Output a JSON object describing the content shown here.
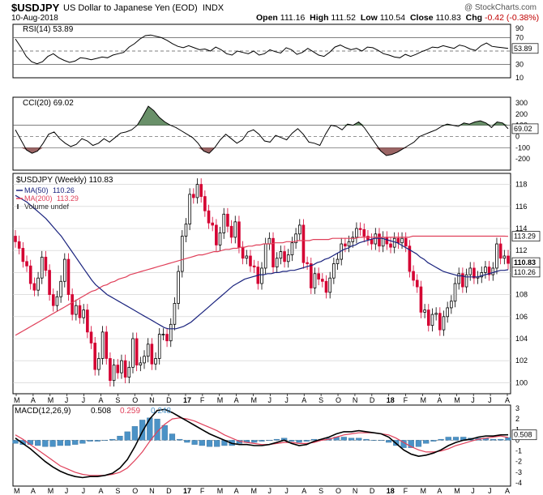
{
  "header": {
    "symbol": "$USDJPY",
    "description": "US Dollar to Japanese Yen (EOD)",
    "exchange": "INDX",
    "date": "10-Aug-2018",
    "copyright": "@ StockCharts.com",
    "open_label": "Open",
    "open": "111.16",
    "high_label": "High",
    "high": "111.52",
    "low_label": "Low",
    "low": "110.54",
    "close_label": "Close",
    "close": "110.83",
    "chg_label": "Chg",
    "chg": "-0.42 (-0.38%)",
    "chg_icon": "down-triangle-icon"
  },
  "colors": {
    "up": "#000000",
    "down": "#d40032",
    "ma50": "#1a237e",
    "ma200": "#e0405a",
    "macd_hist": "#4b92c6",
    "cci_pos": "#4f7c4f",
    "cci_neg": "#8a4a4a",
    "grid": "#cccccc"
  },
  "chart_data": [
    {
      "type": "line",
      "title": "RSI(14) 53.89",
      "label": "RSI(14)",
      "value": "53.89",
      "yticks": [
        "90",
        "70",
        "50",
        "30",
        "10"
      ],
      "ylim": [
        10,
        90
      ],
      "reference_lines": [
        30,
        50,
        70
      ],
      "values": [
        68,
        56,
        42,
        34,
        31,
        34,
        42,
        46,
        40,
        36,
        33,
        35,
        40,
        39,
        37,
        39,
        41,
        40,
        44,
        46,
        48,
        56,
        61,
        68,
        73,
        74,
        72,
        70,
        66,
        61,
        57,
        55,
        58,
        55,
        52,
        53,
        50,
        56,
        52,
        46,
        44,
        50,
        48,
        46,
        50,
        44,
        46,
        52,
        49,
        47,
        55,
        52,
        45,
        48,
        54,
        49,
        44,
        42,
        48,
        56,
        59,
        55,
        52,
        54,
        50,
        56,
        55,
        51,
        46,
        44,
        41,
        40,
        45,
        42,
        45,
        49,
        52,
        56,
        55,
        58,
        56,
        54,
        59,
        57,
        53,
        51,
        58,
        62,
        57,
        56,
        55,
        53.89
      ]
    },
    {
      "type": "area",
      "title": "CCI(20) 69.02",
      "label": "CCI(20)",
      "value": "69.02",
      "yticks": [
        "300",
        "200",
        "100",
        "0",
        "-100",
        "-200"
      ],
      "ylim": [
        -300,
        350
      ],
      "reference_lines": [
        -100,
        0,
        100
      ],
      "values": [
        60,
        -30,
        -120,
        -150,
        -130,
        -60,
        20,
        40,
        -20,
        -60,
        -90,
        -70,
        -20,
        -40,
        -80,
        -60,
        -20,
        -50,
        -10,
        30,
        40,
        60,
        100,
        180,
        270,
        230,
        170,
        130,
        100,
        80,
        50,
        20,
        -10,
        -60,
        -130,
        -150,
        -100,
        -30,
        20,
        -20,
        -60,
        -30,
        40,
        60,
        20,
        -40,
        -50,
        10,
        -10,
        -30,
        30,
        70,
        20,
        -50,
        -60,
        -80,
        20,
        100,
        90,
        60,
        110,
        100,
        130,
        80,
        10,
        -60,
        -130,
        -170,
        -160,
        -140,
        -110,
        -80,
        -50,
        0,
        20,
        40,
        60,
        90,
        110,
        100,
        90,
        120,
        110,
        130,
        140,
        120,
        80,
        130,
        120,
        69.02
      ]
    },
    {
      "type": "candlestick",
      "title": "$USDJPY (Weekly) 110.83",
      "legend": [
        {
          "name": "$USDJPY (Weekly)",
          "value": "110.83"
        },
        {
          "name": "MA(50)",
          "value": "110.26"
        },
        {
          "name": "MA(200)",
          "value": "113.29"
        },
        {
          "name": "Volume undef",
          "value": ""
        }
      ],
      "yticks": [
        "118",
        "116",
        "114",
        "112",
        "110",
        "108",
        "106",
        "104",
        "102",
        "100"
      ],
      "ylim": [
        99,
        119
      ],
      "xlabels": [
        "M",
        "A",
        "M",
        "J",
        "J",
        "A",
        "S",
        "O",
        "N",
        "D",
        "17",
        "F",
        "M",
        "A",
        "M",
        "J",
        "J",
        "A",
        "S",
        "O",
        "N",
        "D",
        "18",
        "F",
        "M",
        "A",
        "M",
        "J",
        "J",
        "A"
      ],
      "price_labels": [
        "113.29",
        "110.83",
        "110.26"
      ],
      "closes": [
        112.8,
        112.2,
        111.0,
        110.6,
        109.0,
        108.4,
        109.5,
        111.4,
        110.2,
        108.0,
        107.0,
        107.8,
        109.2,
        111.2,
        108.0,
        106.2,
        107.0,
        105.9,
        106.6,
        104.6,
        103.6,
        101.2,
        102.2,
        104.6,
        102.2,
        100.2,
        101.6,
        100.9,
        102.0,
        100.5,
        101.4,
        104.0,
        101.6,
        101.8,
        102.4,
        103.5,
        101.7,
        102.2,
        104.4,
        104.4,
        103.8,
        105.3,
        107.2,
        110.1,
        113.3,
        114.4,
        117.1,
        116.8,
        118.0,
        116.9,
        115.6,
        114.5,
        114.3,
        112.5,
        113.6,
        115.3,
        114.2,
        113.2,
        114.6,
        112.3,
        111.3,
        111.5,
        110.6,
        110.5,
        109.0,
        110.4,
        112.6,
        113.1,
        110.5,
        111.3,
        111.9,
        111.0,
        111.6,
        112.7,
        113.5,
        114.3,
        110.9,
        110.8,
        108.6,
        109.9,
        109.4,
        109.2,
        108.2,
        109.5,
        110.8,
        111.2,
        112.6,
        112.4,
        112.8,
        113.2,
        114.0,
        113.9,
        113.3,
        113.0,
        112.6,
        113.5,
        112.4,
        113.2,
        112.6,
        112.3,
        113.1,
        112.7,
        113.1,
        112.4,
        110.1,
        109.3,
        108.7,
        106.4,
        106.6,
        105.2,
        106.2,
        106.3,
        104.8,
        106.0,
        106.8,
        107.4,
        109.0,
        109.9,
        108.7,
        109.8,
        110.4,
        109.5,
        109.6,
        110.0,
        110.5,
        109.8,
        110.4,
        112.6,
        111.3,
        111.5,
        110.83
      ],
      "ma50": [
        117.0,
        116.8,
        116.6,
        116.4,
        116.1,
        115.8,
        115.5,
        115.2,
        114.9,
        114.5,
        114.1,
        113.7,
        113.3,
        112.8,
        112.3,
        111.8,
        111.3,
        110.8,
        110.3,
        109.8,
        109.3,
        108.9,
        108.6,
        108.3,
        108.0,
        107.8,
        107.6,
        107.4,
        107.2,
        107.0,
        106.8,
        106.6,
        106.4,
        106.2,
        106.0,
        105.8,
        105.6,
        105.4,
        105.2,
        105.0,
        104.9,
        104.9,
        104.9,
        105.0,
        105.1,
        105.3,
        105.5,
        105.8,
        106.1,
        106.4,
        106.7,
        107.0,
        107.3,
        107.6,
        107.9,
        108.2,
        108.5,
        108.8,
        109.0,
        109.2,
        109.4,
        109.5,
        109.6,
        109.7,
        109.8,
        109.8,
        109.9,
        109.9,
        110.0,
        110.0,
        110.1,
        110.1,
        110.2,
        110.2,
        110.3,
        110.4,
        110.5,
        110.6,
        110.7,
        110.9,
        111.0,
        111.2,
        111.3,
        111.5,
        111.7,
        111.9,
        112.1,
        112.2,
        112.4,
        112.5,
        112.7,
        112.8,
        112.9,
        113.0,
        113.1,
        113.1,
        113.1,
        113.0,
        112.9,
        112.8,
        112.7,
        112.5,
        112.3,
        112.1,
        111.9,
        111.7,
        111.4,
        111.2,
        110.9,
        110.7,
        110.5,
        110.3,
        110.1,
        110.0,
        109.9,
        109.8,
        109.7,
        109.7,
        109.6,
        109.6,
        109.6,
        109.6,
        109.7,
        109.8,
        109.9,
        110.0,
        110.1,
        110.2,
        110.2,
        110.26
      ],
      "ma200": [
        104.3,
        104.5,
        104.7,
        104.9,
        105.1,
        105.3,
        105.5,
        105.7,
        105.9,
        106.1,
        106.3,
        106.5,
        106.7,
        106.9,
        107.1,
        107.3,
        107.5,
        107.7,
        107.9,
        108.1,
        108.3,
        108.4,
        108.6,
        108.8,
        108.9,
        109.1,
        109.2,
        109.4,
        109.5,
        109.6,
        109.8,
        109.9,
        110.0,
        110.1,
        110.2,
        110.3,
        110.4,
        110.5,
        110.6,
        110.7,
        110.8,
        110.9,
        111.0,
        111.1,
        111.2,
        111.3,
        111.4,
        111.5,
        111.6,
        111.6,
        111.7,
        111.8,
        111.9,
        111.9,
        112.0,
        112.1,
        112.1,
        112.2,
        112.2,
        112.3,
        112.3,
        112.4,
        112.4,
        112.5,
        112.5,
        112.6,
        112.6,
        112.6,
        112.7,
        112.7,
        112.7,
        112.8,
        112.8,
        112.8,
        112.9,
        112.9,
        112.9,
        112.9,
        113.0,
        113.0,
        113.0,
        113.0,
        113.0,
        113.1,
        113.1,
        113.1,
        113.1,
        113.1,
        113.1,
        113.1,
        113.2,
        113.2,
        113.2,
        113.2,
        113.2,
        113.2,
        113.2,
        113.2,
        113.2,
        113.2,
        113.2,
        113.2,
        113.2,
        113.2,
        113.3,
        113.3,
        113.3,
        113.3,
        113.3,
        113.3,
        113.3,
        113.3,
        113.3,
        113.3,
        113.3,
        113.3,
        113.3,
        113.3,
        113.3,
        113.3,
        113.3,
        113.3,
        113.3,
        113.3,
        113.3,
        113.3,
        113.3,
        113.3,
        113.3,
        113.29
      ]
    },
    {
      "type": "line",
      "title": "MACD(12,26,9) 0.508, 0.259, 0.248",
      "label": "MACD(12,26,9)",
      "values_text": [
        "0.508",
        "0.259",
        "0.248"
      ],
      "yticks": [
        "3",
        "2",
        "1",
        "0",
        "-1",
        "-2",
        "-3",
        "-4"
      ],
      "ylim": [
        -4.3,
        3.3
      ],
      "price_label": "0.508",
      "xlabels": [
        "M",
        "A",
        "M",
        "J",
        "J",
        "A",
        "S",
        "O",
        "N",
        "D",
        "17",
        "F",
        "M",
        "A",
        "M",
        "J",
        "J",
        "A",
        "S",
        "O",
        "N",
        "D",
        "18",
        "F",
        "M",
        "A",
        "M",
        "J",
        "J",
        "A"
      ],
      "series": [
        {
          "name": "MACD",
          "values": [
            0.2,
            -0.3,
            -0.8,
            -1.4,
            -2.0,
            -2.5,
            -2.9,
            -3.2,
            -3.4,
            -3.5,
            -3.4,
            -3.4,
            -3.3,
            -3.1,
            -2.6,
            -1.8,
            -0.6,
            0.8,
            2.0,
            2.8,
            2.9,
            2.6,
            2.2,
            1.8,
            1.4,
            1.0,
            0.6,
            0.3,
            0.0,
            -0.3,
            -0.4,
            -0.4,
            -0.5,
            -0.5,
            -0.4,
            -0.2,
            0.0,
            -0.3,
            -0.5,
            -0.4,
            -0.1,
            0.1,
            0.3,
            0.6,
            0.8,
            0.8,
            0.9,
            0.8,
            0.7,
            0.6,
            0.3,
            -0.3,
            -0.9,
            -1.3,
            -1.5,
            -1.4,
            -1.2,
            -0.9,
            -0.5,
            -0.2,
            0.0,
            0.1,
            0.3,
            0.4,
            0.4,
            0.5,
            0.508
          ]
        },
        {
          "name": "Signal",
          "values": [
            0.5,
            0.1,
            -0.4,
            -0.9,
            -1.4,
            -1.9,
            -2.4,
            -2.7,
            -3.0,
            -3.2,
            -3.3,
            -3.3,
            -3.3,
            -3.2,
            -3.0,
            -2.6,
            -1.9,
            -1.1,
            -0.1,
            0.8,
            1.5,
            2.0,
            2.1,
            2.0,
            1.8,
            1.5,
            1.2,
            0.9,
            0.5,
            0.2,
            -0.1,
            -0.2,
            -0.3,
            -0.4,
            -0.4,
            -0.3,
            -0.2,
            -0.2,
            -0.3,
            -0.3,
            -0.2,
            0.0,
            0.1,
            0.3,
            0.5,
            0.6,
            0.7,
            0.7,
            0.7,
            0.6,
            0.5,
            0.2,
            -0.2,
            -0.6,
            -0.9,
            -1.1,
            -1.1,
            -1.0,
            -0.8,
            -0.5,
            -0.3,
            -0.1,
            0.1,
            0.2,
            0.3,
            0.4,
            0.259
          ]
        },
        {
          "name": "Histogram",
          "values": [
            -0.3,
            -0.4,
            -0.4,
            -0.5,
            -0.6,
            -0.6,
            -0.5,
            -0.5,
            -0.4,
            -0.3,
            -0.1,
            -0.1,
            0.0,
            0.1,
            0.4,
            0.8,
            1.3,
            1.9,
            2.1,
            2.0,
            1.4,
            0.6,
            0.1,
            -0.2,
            -0.4,
            -0.5,
            -0.6,
            -0.6,
            -0.5,
            -0.5,
            -0.3,
            -0.2,
            -0.2,
            -0.1,
            0.0,
            0.1,
            0.2,
            -0.1,
            -0.2,
            -0.1,
            0.1,
            0.1,
            0.2,
            0.3,
            0.3,
            0.2,
            0.2,
            0.1,
            0.0,
            0.0,
            -0.2,
            -0.5,
            -0.7,
            -0.7,
            -0.6,
            -0.3,
            -0.1,
            0.1,
            0.3,
            0.3,
            0.3,
            0.2,
            0.2,
            0.2,
            0.1,
            0.1,
            0.248
          ]
        }
      ]
    }
  ]
}
